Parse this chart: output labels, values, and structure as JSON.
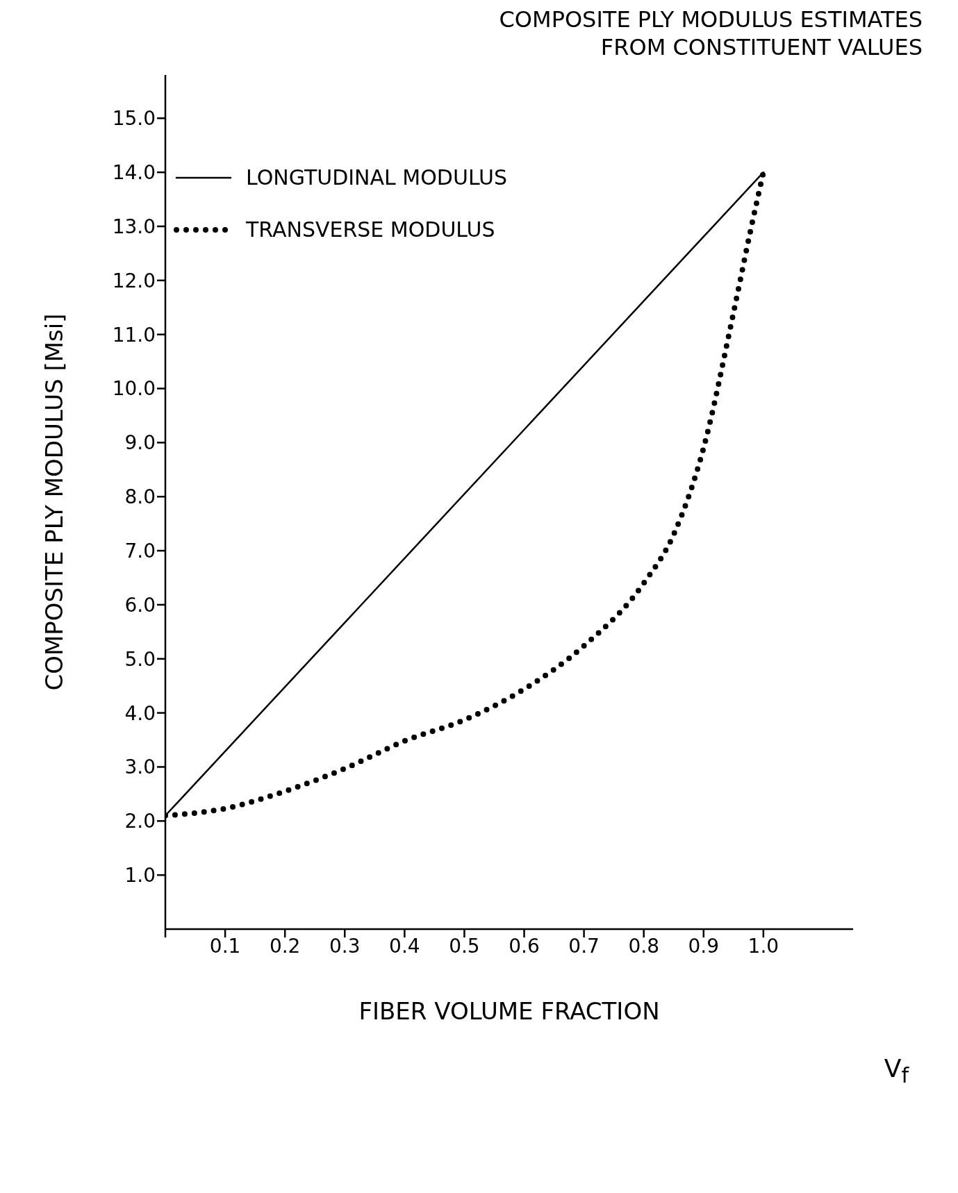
{
  "chart_data": {
    "type": "line",
    "title": "COMPOSITE PLY MODULUS ESTIMATES",
    "subtitle": "FROM CONSTITUENT VALUES",
    "xlabel": "FIBER VOLUME FRACTION",
    "ylabel": "COMPOSITE PLY MODULUS [Msi]",
    "annotations": [
      "V$_{f}$"
    ],
    "series": [
      {
        "name": "LONGTUDINAL MODULUS",
        "color": "#000000",
        "line_style": "solid",
        "x": [
          0,
          1.0
        ],
        "values": [
          2.1,
          14.0
        ]
      },
      {
        "name": "TRANSVERSE MODULUS",
        "color": "#000000",
        "line_style": "dotted",
        "x": [
          0,
          0.1,
          0.2,
          0.3,
          0.4,
          0.5,
          0.6,
          0.7,
          0.8,
          0.85,
          0.9,
          0.95,
          0.98,
          1.0
        ],
        "values": [
          2.1,
          2.23,
          2.55,
          2.97,
          3.48,
          3.87,
          4.44,
          5.24,
          6.4,
          7.3,
          8.9,
          11.4,
          13.0,
          14.0
        ]
      }
    ],
    "xlim": [
      0,
      1.15
    ],
    "xticks": [
      {
        "value": 0,
        "label": null
      },
      0.1,
      0.2,
      0.3,
      0.4,
      0.5,
      0.6,
      0.7,
      0.8,
      0.9,
      {
        "value": 1.0,
        "label": "1.0"
      }
    ],
    "ylim": [
      0,
      15.8
    ],
    "yticks": [
      {
        "value": 1,
        "label": "1.0"
      },
      {
        "value": 2,
        "label": "2.0"
      },
      {
        "value": 3,
        "label": "3.0"
      },
      {
        "value": 4,
        "label": "4.0"
      },
      {
        "value": 5,
        "label": "5.0"
      },
      {
        "value": 6,
        "label": "6.0"
      },
      {
        "value": 7,
        "label": "7.0"
      },
      {
        "value": 8,
        "label": "8.0"
      },
      {
        "value": 9,
        "label": "9.0"
      },
      {
        "value": 10,
        "label": "10.0"
      },
      {
        "value": 11,
        "label": "11.0"
      },
      {
        "value": 12,
        "label": "12.0"
      },
      {
        "value": 13,
        "label": "13.0"
      },
      {
        "value": 14,
        "label": "14.0"
      },
      {
        "value": 15,
        "label": "15.0"
      }
    ],
    "grid": false,
    "legend": "top left"
  }
}
